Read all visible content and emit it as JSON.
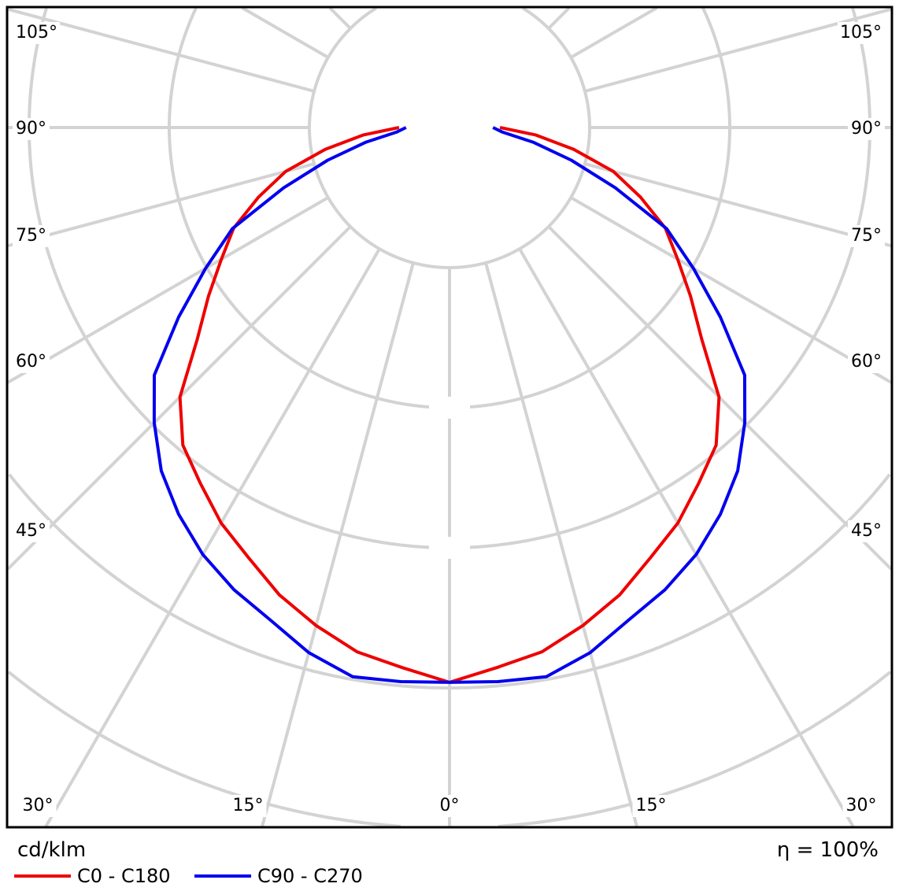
{
  "chart_data": {
    "type": "polar",
    "unit_label": "cd/klm",
    "efficiency_label": "η = 100%",
    "angle_labels_left": [
      "105°",
      "90°",
      "75°",
      "60°",
      "45°",
      "30°",
      "15°"
    ],
    "angle_labels_bottom": [
      "30°",
      "15°",
      "0°",
      "15°",
      "30°"
    ],
    "angle_labels_right": [
      "105°",
      "90°",
      "75°",
      "60°",
      "45°"
    ],
    "angle_step_deg": 15,
    "ring_labels": [
      "",
      ""
    ],
    "radial_unit_note": "",
    "grid": true,
    "legend_position": "bottom-left",
    "angles_deg": [
      0,
      5,
      10,
      15,
      20,
      25,
      30,
      35,
      40,
      45,
      50,
      55,
      60,
      65,
      70,
      75,
      80,
      85,
      90
    ],
    "series": [
      {
        "name": "C0 - C180",
        "color": "#ee0000",
        "values": [
          3.96,
          3.87,
          3.8,
          3.68,
          3.55,
          3.39,
          3.26,
          3.1,
          2.96,
          2.72,
          2.35,
          2.1,
          1.88,
          1.7,
          1.45,
          1.21,
          0.9,
          0.62,
          0.36
        ]
      },
      {
        "name": "C90 - C270",
        "color": "#0000ee",
        "values": [
          3.96,
          3.97,
          3.98,
          3.88,
          3.74,
          3.64,
          3.52,
          3.37,
          3.2,
          2.98,
          2.75,
          2.36,
          2.01,
          1.71,
          1.26,
          0.9,
          0.61,
          0.38,
          0.31
        ]
      }
    ]
  }
}
